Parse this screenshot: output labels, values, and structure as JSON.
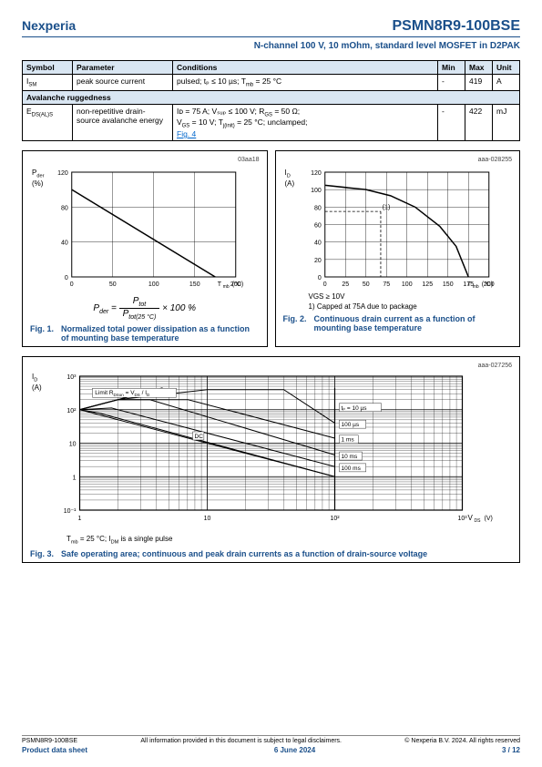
{
  "header": {
    "brand": "Nexperia",
    "part": "PSMN8R9-100BSE",
    "subtitle": "N-channel 100 V, 10 mOhm, standard level MOSFET in D2PAK"
  },
  "table": {
    "headers": [
      "Symbol",
      "Parameter",
      "Conditions",
      "Min",
      "Max",
      "Unit"
    ],
    "rows": [
      {
        "sym": "I",
        "sub": "SM",
        "param": "peak source current",
        "cond": "pulsed; tₚ ≤  10 µs; T",
        "cond_sub": "mb",
        "cond_tail": " = 25 °C",
        "min": "-",
        "max": "419",
        "unit": "A"
      }
    ],
    "section": "Avalanche ruggedness",
    "row2": {
      "sym": "E",
      "sub": "DS(AL)S",
      "param": "non-repetitive drain-source avalanche energy",
      "cond_l1": "Iᴅ = 75 A; Vₛᵤₚ ≤  100 V; R",
      "cond_sub1": "GS",
      "cond_m1": " = 50 Ω;",
      "cond_l2": "V",
      "cond_sub2": "GS",
      "cond_m2": " = 10 V; T",
      "cond_sub3": "j(init)",
      "cond_m3": " = 25 °C; unclamped;",
      "link": "Fig. 4",
      "min": "-",
      "max": "422",
      "unit": "mJ"
    }
  },
  "fig1": {
    "code": "03aa18",
    "ylabel_top": "P",
    "ylabel_sub": "der",
    "ylabel_unit": "(%)",
    "yticks": [
      "0",
      "40",
      "80",
      "120"
    ],
    "xticks": [
      "0",
      "50",
      "100",
      "150",
      "200"
    ],
    "xlabel": "T",
    "xlabel_sub": "mb",
    "xlabel_unit": "(°C)",
    "formula_lhs": "P",
    "formula_lhs_sub": "der",
    "formula_eq": " = ",
    "formula_num": "P",
    "formula_num_sub": "tot",
    "formula_den": "P",
    "formula_den_sub": "tot(25 °C)",
    "formula_tail": " × 100 %",
    "cap_num": "Fig. 1.",
    "cap_txt": "Normalized total power dissipation as a function of mounting base temperature",
    "line": [
      [
        0,
        100
      ],
      [
        175,
        0
      ]
    ]
  },
  "fig2": {
    "code": "aaa-028255",
    "ylabel_top": "I",
    "ylabel_sub": "D",
    "ylabel_unit": "(A)",
    "yticks": [
      "0",
      "20",
      "40",
      "60",
      "80",
      "100",
      "120"
    ],
    "xticks": [
      "0",
      "25",
      "50",
      "75",
      "100",
      "125",
      "150",
      "175",
      "200"
    ],
    "xlabel": "T",
    "xlabel_sub": "mb",
    "xlabel_unit": "(°C)",
    "note1": "VGS ≥ 10V",
    "note2": "1) Capped at 75A due to package",
    "cap_num": "Fig. 2.",
    "cap_txt": "Continuous drain current as a function of mounting base temperature",
    "curve": [
      [
        0,
        105
      ],
      [
        50,
        100
      ],
      [
        80,
        93
      ],
      [
        110,
        80
      ],
      [
        140,
        58
      ],
      [
        160,
        35
      ],
      [
        175,
        0
      ]
    ],
    "dash1": [
      [
        0,
        75
      ],
      [
        68,
        75
      ]
    ],
    "dash2": [
      [
        68,
        75
      ],
      [
        68,
        0
      ]
    ],
    "marker": "(1)"
  },
  "fig3": {
    "code": "aaa-027256",
    "ylabel_top": "I",
    "ylabel_sub": "D",
    "ylabel_unit": "(A)",
    "yticks": [
      "10⁻¹",
      "1",
      "10",
      "10²",
      "10³"
    ],
    "xticks": [
      "1",
      "10",
      "10²",
      "10³"
    ],
    "xlabel": "V",
    "xlabel_sub": "DS",
    "xlabel_unit": "(V)",
    "limit_label": "Limit R",
    "limit_sub": "DSon",
    "limit_tail": " = V",
    "limit_sub2": "DS",
    "limit_tail2": " / I",
    "limit_sub3": "D",
    "dc_label": "DC",
    "pulse_labels": [
      "tₚ = 10 µs",
      "100 µs",
      "1 ms",
      "10 ms",
      "100 ms"
    ],
    "under": "T",
    "under_sub": "mb",
    "under_tail": " = 25 °C; I",
    "under_sub2": "DM",
    "under_tail2": " is a single pulse",
    "cap_num": "Fig. 3.",
    "cap_txt": "Safe operating area; continuous and peak drain currents as a function of drain-source voltage"
  },
  "footer": {
    "part": "PSMN8R9-100BSE",
    "disclaimer": "All information provided in this document is subject to legal disclaimers.",
    "copy": "© Nexperia B.V. 2024. All rights reserved",
    "type": "Product data sheet",
    "date": "6 June 2024",
    "page": "3 / 12"
  }
}
